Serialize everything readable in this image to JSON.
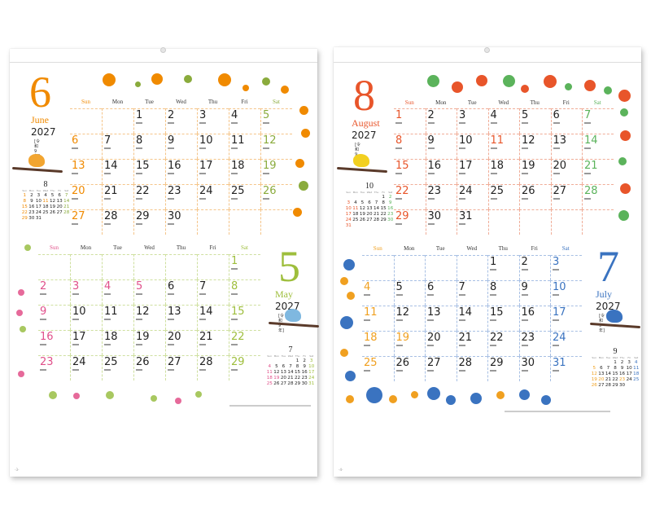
{
  "weekdays": [
    "Sun",
    "Mon",
    "Tue",
    "Wed",
    "Thu",
    "Fri",
    "Sat"
  ],
  "mini_weekdays": [
    "Sun",
    "Mon",
    "Tue",
    "Wed",
    "Thu",
    "Fri",
    "Sat"
  ],
  "pages": [
    {
      "page_number": "-3-",
      "sections": [
        {
          "month_number": "6",
          "month_name": "June",
          "year": "2027",
          "era": "[令和9年]",
          "first_weekday": 2,
          "days": 30,
          "holidays": [],
          "colors": {
            "accent": "#f08a00",
            "sun": "#f08a00",
            "sat": "#8aab3c",
            "line": "#f5c58a"
          },
          "mini": {
            "month_number": "8",
            "first_weekday": 0,
            "days": 31,
            "holidays": [
              11
            ],
            "sun": "#f08a00",
            "sat": "#8aab3c"
          }
        },
        {
          "month_number": "5",
          "month_name": "May",
          "year": "2027",
          "era": "[令和9年]",
          "first_weekday": 6,
          "days": 31,
          "holidays": [
            3,
            4,
            5
          ],
          "colors": {
            "accent": "#9ebe3c",
            "sun": "#e0508a",
            "sat": "#9ebe3c",
            "line": "#cfe0a0"
          },
          "mini": {
            "month_number": "7",
            "first_weekday": 4,
            "days": 31,
            "holidays": [
              19
            ],
            "sun": "#e0508a",
            "sat": "#9ebe3c"
          }
        }
      ]
    },
    {
      "page_number": "-4-",
      "sections": [
        {
          "month_number": "8",
          "month_name": "August",
          "year": "2027",
          "era": "[令和9年]",
          "first_weekday": 0,
          "days": 31,
          "holidays": [
            11
          ],
          "colors": {
            "accent": "#e8552a",
            "sun": "#e8552a",
            "sat": "#5bb35b",
            "line": "#f0ad98"
          },
          "mini": {
            "month_number": "10",
            "first_weekday": 5,
            "days": 31,
            "holidays": [
              11
            ],
            "sun": "#e8552a",
            "sat": "#5bb35b"
          }
        },
        {
          "month_number": "7",
          "month_name": "July",
          "year": "2027",
          "era": "[令和9年]",
          "first_weekday": 4,
          "days": 31,
          "holidays": [
            19
          ],
          "colors": {
            "accent": "#3a73c0",
            "sun": "#f0a020",
            "sat": "#3a73c0",
            "line": "#a8c0e4"
          },
          "mini": {
            "month_number": "9",
            "first_weekday": 3,
            "days": 30,
            "holidays": [
              20,
              23
            ],
            "sun": "#f0a020",
            "sat": "#3a73c0"
          }
        }
      ]
    }
  ]
}
